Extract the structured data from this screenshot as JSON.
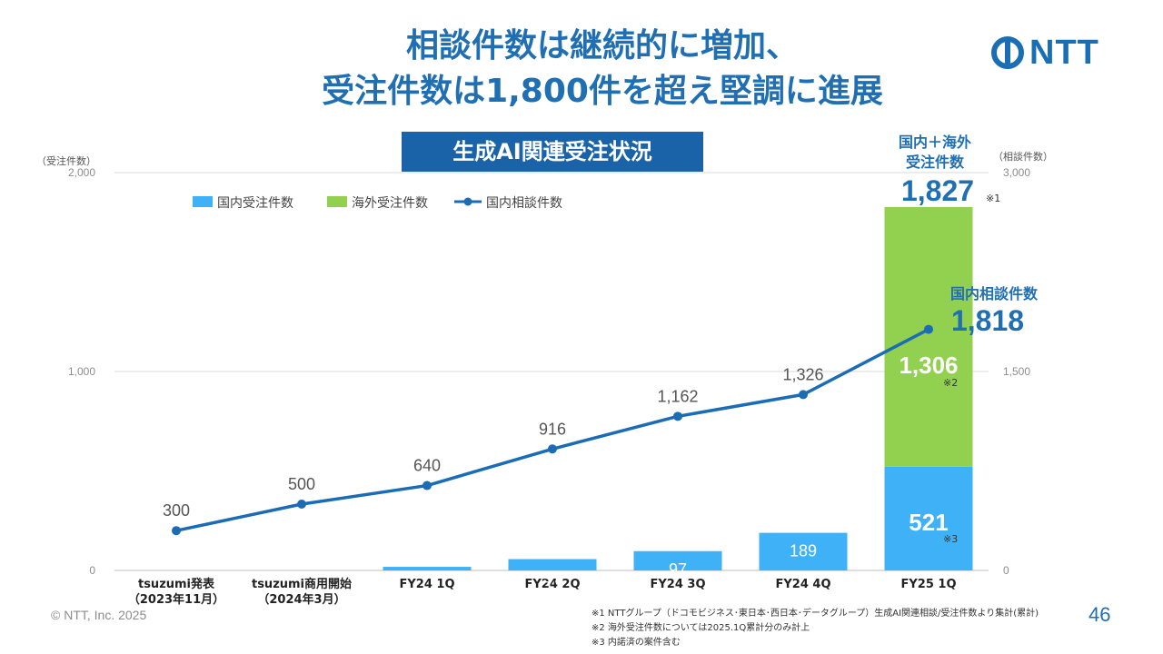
{
  "title_line1": "相談件数は継続的に増加、",
  "title_line2": "受注件数は1,800件を超え堅調に進展",
  "subtitle": "生成AI関連受注状況",
  "logo_text": "NTT",
  "logo_icon": "ntt-logo-icon",
  "copyright": "© NTT, Inc.  2025",
  "page_number": "46",
  "notes": [
    "※1  NTTグループ（ドコモビジネス･東日本･西日本･データグループ）生成AI関連相談/受注件数より集計(累計)",
    "※2  海外受注件数については2025.1Q累計分のみ計上",
    "※3  内諾済の案件含む"
  ],
  "colors": {
    "domestic_bar": "#3fb2f7",
    "overseas_bar": "#92d050",
    "line": "#1b6cb5",
    "accent": "#1f6fb2"
  },
  "chart_data": {
    "type": "bar",
    "categories": [
      [
        "tsuzumi発表",
        "（2023年11月）"
      ],
      [
        "tsuzumi商用開始",
        "（2024年3月）"
      ],
      [
        "FY24 1Q"
      ],
      [
        "FY24 2Q"
      ],
      [
        "FY24 3Q"
      ],
      [
        "FY24 4Q"
      ],
      [
        "FY25 1Q"
      ]
    ],
    "left_axis": {
      "label": "（受注件数）",
      "ticks": [
        "2,000",
        "1,000",
        "0"
      ],
      "ylim": [
        0,
        2000
      ]
    },
    "right_axis": {
      "label": "（相談件数）",
      "ticks": [
        "3,000",
        "1,500",
        "0"
      ],
      "ylim": [
        0,
        3000
      ]
    },
    "legend": [
      "国内受注件数",
      "海外受注件数",
      "国内相談件数"
    ],
    "legend_position": "top-left",
    "series": [
      {
        "name": "国内受注件数",
        "type": "bar",
        "axis": "left",
        "values": [
          0,
          0,
          18,
          57,
          97,
          189,
          521
        ],
        "labels": [
          "",
          "",
          "",
          "57",
          "97",
          "189",
          "521"
        ]
      },
      {
        "name": "海外受注件数",
        "type": "bar",
        "stacked": true,
        "axis": "left",
        "values": [
          0,
          0,
          0,
          0,
          0,
          0,
          1306
        ],
        "labels": [
          "",
          "",
          "",
          "",
          "",
          "",
          "1,306"
        ]
      },
      {
        "name": "国内相談件数",
        "type": "line",
        "axis": "right",
        "values": [
          300,
          500,
          640,
          916,
          1162,
          1326,
          1818
        ],
        "labels": [
          "300",
          "500",
          "640",
          "916",
          "1,162",
          "1,326",
          ""
        ]
      }
    ],
    "annotations": {
      "total_title_line1": "国内＋海外",
      "total_title_line2": "受注件数",
      "total_value": "1,827",
      "total_note": "※1",
      "consult_title": "国内相談件数",
      "consult_value": "1,818",
      "overseas_note": "※2",
      "domestic_note": "※3"
    }
  }
}
